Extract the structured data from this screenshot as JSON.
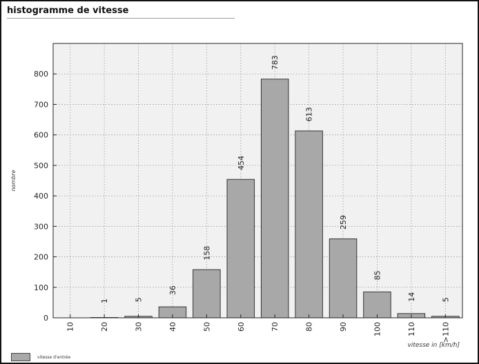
{
  "chart_data": {
    "type": "bar",
    "title": "histogramme de vitesse",
    "xlabel": "vitesse in [km/h]",
    "ylabel": "nombre",
    "categories": [
      "10",
      "20",
      "30",
      "40",
      "50",
      "60",
      "70",
      "80",
      "90",
      "100",
      "110",
      ">110"
    ],
    "values": [
      0,
      1,
      5,
      36,
      158,
      454,
      783,
      613,
      259,
      85,
      14,
      5
    ],
    "data_labels": [
      "",
      "1",
      "5",
      "36",
      "158",
      "454",
      "783",
      "613",
      "259",
      "85",
      "14",
      "5"
    ],
    "ylim": [
      0,
      900
    ],
    "yticks": [
      0,
      100,
      200,
      300,
      400,
      500,
      600,
      700,
      800
    ],
    "ytick_labels": [
      "0",
      "100",
      "200",
      "300",
      "400",
      "500",
      "600",
      "700",
      "800"
    ],
    "grid": true,
    "legend_position": "bottom-left",
    "series": [
      {
        "name": "vitesse d'entrée",
        "color": "#a8a8a8"
      }
    ]
  }
}
